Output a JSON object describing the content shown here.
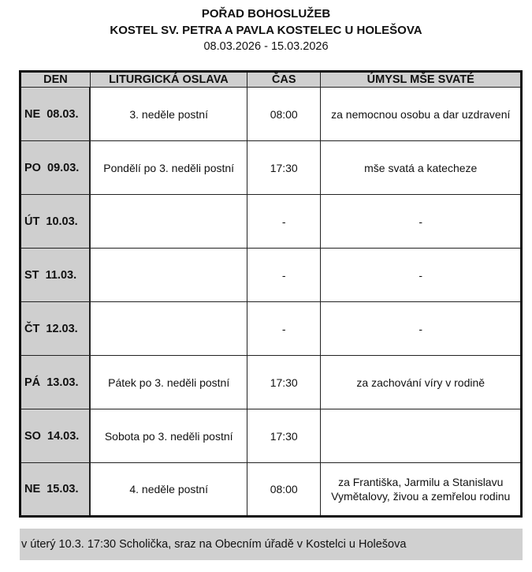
{
  "header": {
    "title": "POŘAD BOHOSLUŽEB",
    "church": "KOSTEL SV. PETRA A PAVLA KOSTELEC U HOLEŠOVA",
    "date_range": "08.03.2026 - 15.03.2026"
  },
  "table": {
    "columns": [
      "DEN",
      "LITURGICKÁ OSLAVA",
      "ČAS",
      "ÚMYSL MŠE SVATÉ"
    ],
    "rows": [
      {
        "day": "NE  08.03.",
        "liturgy": "3. neděle postní",
        "time": "08:00",
        "intention": "za nemocnou osobu a dar uzdravení"
      },
      {
        "day": "PO  09.03.",
        "liturgy": "Pondělí po 3. neděli postní",
        "time": "17:30",
        "intention": "mše svatá a katecheze"
      },
      {
        "day": "ÚT  10.03.",
        "liturgy": "",
        "time": "-",
        "intention": "-"
      },
      {
        "day": "ST  11.03.",
        "liturgy": "",
        "time": "-",
        "intention": "-"
      },
      {
        "day": "ČT  12.03.",
        "liturgy": "",
        "time": "-",
        "intention": "-"
      },
      {
        "day": "PÁ  13.03.",
        "liturgy": "Pátek po 3. neděli postní",
        "time": "17:30",
        "intention": "za zachování víry v rodině"
      },
      {
        "day": "SO  14.03.",
        "liturgy": "Sobota po 3. neděli postní",
        "time": "17:30",
        "intention": ""
      },
      {
        "day": "NE  15.03.",
        "liturgy": "4. neděle postní",
        "time": "08:00",
        "intention": "za Františka, Jarmilu a Stanislavu Vymětalovy, živou a zemřelou rodinu"
      }
    ]
  },
  "note": "v úterý 10.3. 17:30 Scholička, sraz na Obecním úřadě v Kostelci u Holešova"
}
